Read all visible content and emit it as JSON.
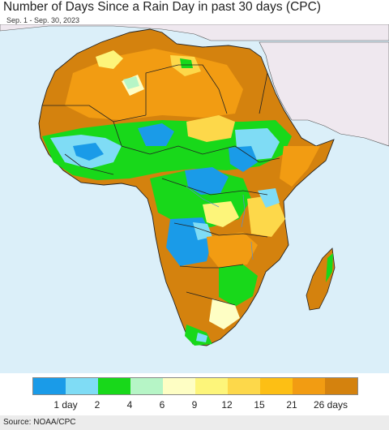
{
  "title": "Number of Days Since a Rain Day in past 30 days (CPC)",
  "subtitle": "Sep. 1 - Sep. 30, 2023",
  "source": "Source: NOAA/CPC",
  "colors": {
    "ocean": "#dbeff9",
    "non_africa_land": "#efe8ef",
    "border": "#222222",
    "river": "#5a8fd0"
  },
  "legend": {
    "colors": [
      "#1a9be8",
      "#7fdcf5",
      "#18d81a",
      "#b6f5c6",
      "#fefec4",
      "#fdf57a",
      "#fdd84a",
      "#fdbf14",
      "#f29c12",
      "#d4820e"
    ],
    "labels": [
      "1 day",
      "2",
      "4",
      "6",
      "9",
      "12",
      "15",
      "21",
      "26 days"
    ]
  }
}
